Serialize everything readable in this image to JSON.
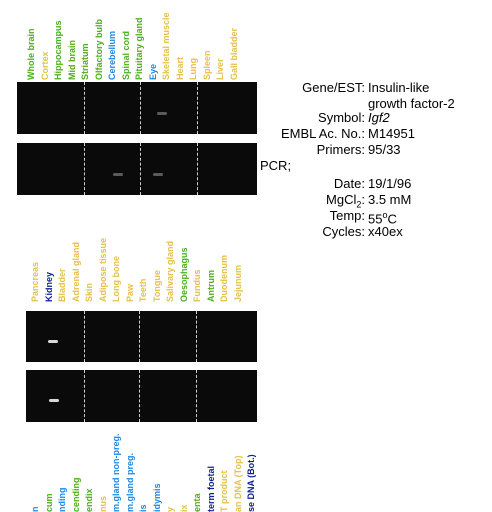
{
  "colors": {
    "green": "#4caf1c",
    "yellow": "#e6c04a",
    "blue": "#1e88e5",
    "navy": "#0b1f8f",
    "gel_bg": "#0a0a0a"
  },
  "panel1": {
    "lanes": [
      {
        "label": "Whole brain",
        "color": "green"
      },
      {
        "label": "Cortex",
        "color": "yellow"
      },
      {
        "label": "Hippocampus",
        "color": "green"
      },
      {
        "label": "Mid brain",
        "color": "green"
      },
      {
        "label": "Striatum",
        "color": "green"
      },
      {
        "label": "Olfactory bulb",
        "color": "green"
      },
      {
        "label": "Cerebellum",
        "color": "blue"
      },
      {
        "label": "Spinal cord",
        "color": "green"
      },
      {
        "label": "Pituitary gland",
        "color": "green"
      },
      {
        "label": "Eye",
        "color": "blue"
      },
      {
        "label": "Skeletal muscle",
        "color": "yellow"
      },
      {
        "label": "Heart",
        "color": "yellow"
      },
      {
        "label": "Lung",
        "color": "yellow"
      },
      {
        "label": "Spleen",
        "color": "yellow"
      },
      {
        "label": "Liver",
        "color": "yellow"
      },
      {
        "label": "Gall bladder",
        "color": "yellow"
      }
    ]
  },
  "panel2": {
    "lanes": [
      {
        "label": "Pancreas",
        "color": "yellow"
      },
      {
        "label": "Kidney",
        "color": "navy"
      },
      {
        "label": "Bladder",
        "color": "yellow"
      },
      {
        "label": "Adrenal gland",
        "color": "yellow"
      },
      {
        "label": "Skin",
        "color": "yellow"
      },
      {
        "label": "Adipose tissue",
        "color": "yellow"
      },
      {
        "label": "Long bone",
        "color": "yellow"
      },
      {
        "label": "Paw",
        "color": "yellow"
      },
      {
        "label": "Teeth",
        "color": "yellow"
      },
      {
        "label": "Tongue",
        "color": "yellow"
      },
      {
        "label": "Salivary gland",
        "color": "yellow"
      },
      {
        "label": "Oesophagus",
        "color": "green"
      },
      {
        "label": "Fundus",
        "color": "yellow"
      },
      {
        "label": "Antrum",
        "color": "green"
      },
      {
        "label": "Duodenum",
        "color": "yellow"
      },
      {
        "label": "Jejunum",
        "color": "yellow"
      }
    ]
  },
  "panel3": {
    "lanes": [
      {
        "label": "n",
        "color": "blue"
      },
      {
        "label": "cum",
        "color": "green"
      },
      {
        "label": "nding",
        "color": "blue"
      },
      {
        "label": "cending",
        "color": "green"
      },
      {
        "label": "endix",
        "color": "green"
      },
      {
        "label": "nus",
        "color": "yellow"
      },
      {
        "label": "m.gland non-preg.",
        "color": "blue"
      },
      {
        "label": "m.gland preg.",
        "color": "blue"
      },
      {
        "label": "is",
        "color": "blue"
      },
      {
        "label": "idymis",
        "color": "blue"
      },
      {
        "label": "y",
        "color": "yellow"
      },
      {
        "label": "ix",
        "color": "yellow"
      },
      {
        "label": "enta",
        "color": "green"
      },
      {
        "label": "term foetal",
        "color": "navy"
      },
      {
        "label": "T product",
        "color": "yellow"
      },
      {
        "label": "an DNA (Top)",
        "color": "yellow"
      },
      {
        "label": "se DNA (Bot.)",
        "color": "navy"
      }
    ]
  },
  "info": {
    "gene_label": "Gene/EST:",
    "gene_value_line1": "Insulin-like",
    "gene_value_line2": "growth factor-2",
    "symbol_label": "Symbol:",
    "symbol_value": "Igf2",
    "embl_label": "EMBL Ac. No.:",
    "embl_value": "M14951",
    "primers_label": "Primers:",
    "primers_value": "95/33",
    "pcr_label": "PCR;",
    "date_label": "Date:",
    "date_value": "19/1/96",
    "mgcl_label_main": "MgCl",
    "mgcl_label_sub": "2",
    "mgcl_label_end": ":",
    "mgcl_value": "3.5 mM",
    "temp_label": "Temp:",
    "temp_value_main": "55",
    "temp_value_sup": "o",
    "temp_value_end": "C",
    "cycles_label": "Cycles:",
    "cycles_value": "x40ex"
  }
}
